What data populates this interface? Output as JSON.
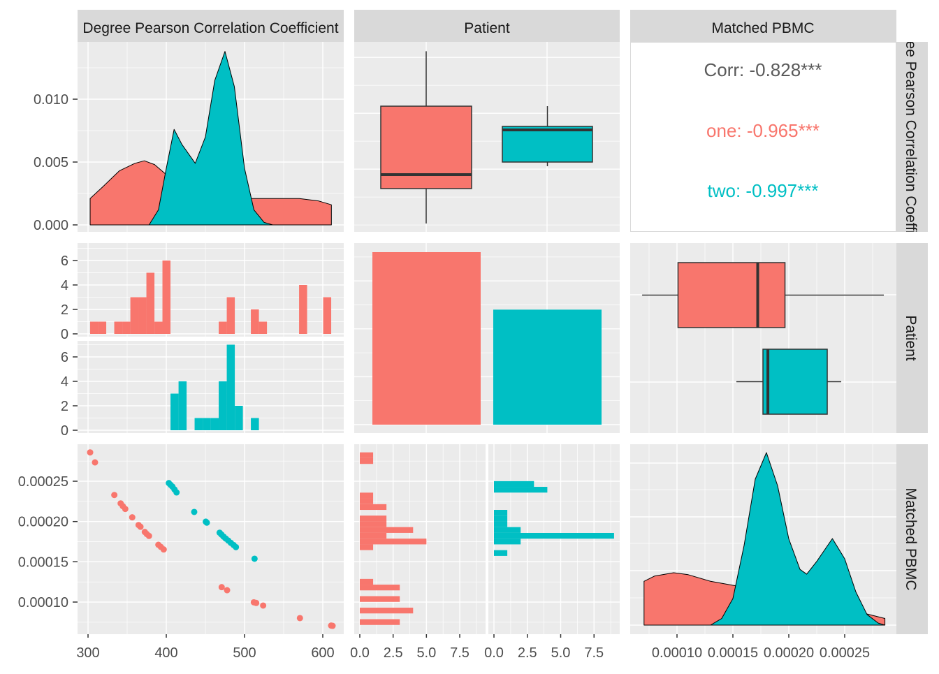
{
  "strips": {
    "columns": [
      "Degree Pearson Correlation Coefficient",
      "Patient",
      "Matched PBMC"
    ],
    "rows": [
      "Degree Pearson Correlation Coefficient",
      "Patient",
      "Matched PBMC"
    ]
  },
  "colors": {
    "one": "#F8766D",
    "two": "#00BFC4",
    "panel": "#EBEBEB",
    "strip": "#D9D9D9",
    "corr_text": "#595959"
  },
  "correlation": {
    "overall": "Corr: -0.828***",
    "one": "one: -0.965***",
    "two": "two: -0.997***"
  },
  "axes": {
    "x_bottom": [
      [
        "300",
        "400",
        "500",
        "600"
      ],
      [
        "0.0",
        "2.5",
        "5.0",
        "7.5"
      ],
      [
        "0.0",
        "2.5",
        "5.0",
        "7.5"
      ],
      [
        "0.00010",
        "0.00015",
        "0.00020",
        "0.00025"
      ]
    ],
    "y_left": [
      [
        "0.000",
        "0.005",
        "0.010"
      ],
      [
        "0",
        "2",
        "4",
        "6"
      ],
      [
        "0",
        "2",
        "4",
        "6"
      ],
      [
        "0.00010",
        "0.00015",
        "0.00020",
        "0.00025"
      ]
    ]
  },
  "chart_data": [
    {
      "panel": "density-pearson",
      "type": "area",
      "x_variable": "Degree Pearson Correlation Coefficient",
      "xlim": [
        286.6,
        626.8
      ],
      "ylim": [
        0,
        0.0144
      ],
      "series": [
        {
          "group": "one",
          "points": [
            [
              302.7,
              0.0021
            ],
            [
              320,
              0.0031
            ],
            [
              340,
              0.0043
            ],
            [
              360,
              0.0049
            ],
            [
              372,
              0.0051
            ],
            [
              385,
              0.0048
            ],
            [
              400,
              0.004
            ],
            [
              420,
              0.003
            ],
            [
              450,
              0.0022
            ],
            [
              480,
              0.002
            ],
            [
              510,
              0.0021
            ],
            [
              540,
              0.0021
            ],
            [
              570,
              0.0021
            ],
            [
              595,
              0.0019
            ],
            [
              611,
              0.0016
            ]
          ]
        },
        {
          "group": "two",
          "points": [
            [
              378,
              0
            ],
            [
              390,
              0.0012
            ],
            [
              400,
              0.0045
            ],
            [
              410,
              0.0076
            ],
            [
              420,
              0.0064
            ],
            [
              437,
              0.0049
            ],
            [
              450,
              0.007
            ],
            [
              462,
              0.0115
            ],
            [
              475,
              0.0138
            ],
            [
              487,
              0.011
            ],
            [
              500,
              0.0045
            ],
            [
              512,
              0.0012
            ],
            [
              525,
              0.0002
            ],
            [
              536,
              0
            ]
          ]
        }
      ]
    },
    {
      "panel": "boxplot-pearson-by-patient",
      "type": "box",
      "boxes": [
        {
          "group": "one",
          "min": 302.7,
          "q1": 365.2,
          "median": 390.2,
          "q3": 512.7,
          "max": 611
        },
        {
          "group": "two",
          "min": 405.2,
          "q1": 412.7,
          "median": 470.2,
          "q3": 476.5,
          "max": 512.7
        }
      ]
    },
    {
      "panel": "histogram-pearson-faceted",
      "type": "bar",
      "binwidth": 10.27,
      "series": [
        {
          "group": "one",
          "bins": [
            [
              302.7,
              1
            ],
            [
              313.0,
              1
            ],
            [
              333.5,
              1
            ],
            [
              343.8,
              1
            ],
            [
              354.1,
              3
            ],
            [
              364.3,
              3
            ],
            [
              374.6,
              5
            ],
            [
              384.9,
              1
            ],
            [
              395.1,
              6
            ],
            [
              467.0,
              1
            ],
            [
              477.3,
              3
            ],
            [
              508.1,
              2
            ],
            [
              518.4,
              1
            ],
            [
              569.7,
              4
            ],
            [
              600.5,
              3
            ]
          ]
        },
        {
          "group": "two",
          "bins": [
            [
              405.4,
              3
            ],
            [
              415.7,
              4
            ],
            [
              436.2,
              1
            ],
            [
              446.5,
              1
            ],
            [
              456.8,
              1
            ],
            [
              467.0,
              4
            ],
            [
              477.3,
              7
            ],
            [
              487.6,
              2
            ],
            [
              508.1,
              1
            ]
          ]
        }
      ],
      "ylim": [
        0,
        7.3
      ]
    },
    {
      "panel": "bar-patient-count",
      "type": "bar",
      "categories": [
        "one",
        "two"
      ],
      "values": [
        36,
        24
      ]
    },
    {
      "panel": "boxplot-pbmc-by-patient",
      "type": "box",
      "boxes": [
        {
          "group": "one",
          "min": 6.88e-05,
          "q1": 0.0001009,
          "median": 0.0001722,
          "q3": 0.0001966,
          "max": 0.000285
        },
        {
          "group": "two",
          "min": 0.0001531,
          "q1": 0.0001769,
          "median": 0.0001813,
          "q3": 0.0002344,
          "max": 0.0002469
        }
      ]
    },
    {
      "panel": "scatter-pbmc-vs-pearson",
      "type": "scatter",
      "series": [
        {
          "group": "one",
          "points": [
            [
              302.7,
              0.0002858
            ],
            [
              308.9,
              0.0002734
            ],
            [
              333.6,
              0.0002329
            ],
            [
              341.7,
              0.0002225
            ],
            [
              344.5,
              0.000219
            ],
            [
              347.6,
              0.0002156
            ],
            [
              356.5,
              0.0002052
            ],
            [
              364.6,
              0.0001956
            ],
            [
              367,
              0.0001935
            ],
            [
              372.6,
              0.000187
            ],
            [
              375,
              0.0001845
            ],
            [
              377.9,
              0.0001821
            ],
            [
              389.9,
              0.0001711
            ],
            [
              393,
              0.0001685
            ],
            [
              396.7,
              0.0001653
            ],
            [
              470.8,
              0.0001185
            ],
            [
              477.7,
              0.0001147
            ],
            [
              511.9,
              9.97e-05
            ],
            [
              514.9,
              9.89e-05
            ],
            [
              523.8,
              9.57e-05
            ],
            [
              570.8,
              8.01e-05
            ],
            [
              610.7,
              7.08e-05
            ],
            [
              612.5,
              7.05e-05
            ]
          ]
        },
        {
          "group": "two",
          "points": [
            [
              403.3,
              0.0002477
            ],
            [
              405.5,
              0.0002455
            ],
            [
              407.8,
              0.0002433
            ],
            [
              410.5,
              0.0002398
            ],
            [
              413.1,
              0.0002361
            ],
            [
              435.7,
              0.0002119
            ],
            [
              450.5,
              0.0001998
            ],
            [
              451.8,
              0.0001986
            ],
            [
              468.2,
              0.0001861
            ],
            [
              470.5,
              0.0001838
            ],
            [
              473.2,
              0.0001812
            ],
            [
              476,
              0.0001788
            ],
            [
              479.2,
              0.0001763
            ],
            [
              482.5,
              0.0001735
            ],
            [
              486,
              0.0001708
            ],
            [
              489,
              0.0001682
            ],
            [
              512.8,
              0.0001538
            ]
          ]
        }
      ]
    },
    {
      "panel": "histogram-pbmc-faceted",
      "type": "bar",
      "orientation": "horizontal",
      "binwidth": 7.14e-06,
      "series": [
        {
          "group": "one",
          "bins": [
            [
              0.0002787,
              1
            ],
            [
              0.0002715,
              1
            ],
            [
              0.0002287,
              1
            ],
            [
              0.0002216,
              1
            ],
            [
              0.0002144,
              2
            ],
            [
              0.0002002,
              2
            ],
            [
              0.000193,
              2
            ],
            [
              0.0001859,
              4
            ],
            [
              0.0001787,
              2
            ],
            [
              0.0001716,
              5
            ],
            [
              0.0001645,
              1
            ],
            [
              0.0001216,
              1
            ],
            [
              0.0001145,
              3
            ],
            [
              0.0001002,
              3
            ],
            [
              8.59e-05,
              4
            ],
            [
              7.16e-05,
              3
            ]
          ]
        },
        {
          "group": "two",
          "bins": [
            [
              0.000243,
              3
            ],
            [
              0.0002359,
              4
            ],
            [
              0.0002073,
              1
            ],
            [
              0.0002002,
              1
            ],
            [
              0.000193,
              1
            ],
            [
              0.0001859,
              2
            ],
            [
              0.0001787,
              9
            ],
            [
              0.0001716,
              2
            ],
            [
              0.0001573,
              1
            ]
          ]
        }
      ],
      "xlim": [
        0,
        9.2
      ]
    },
    {
      "panel": "density-pbmc",
      "type": "area",
      "x_variable": "Matched PBMC",
      "series": [
        {
          "group": "one",
          "points": [
            [
              7.05e-05,
              3300
            ],
            [
              8e-05,
              3700
            ],
            [
              9.7e-05,
              3950
            ],
            [
              0.00011,
              3800
            ],
            [
              0.00013,
              3300
            ],
            [
              0.00015,
              3000
            ],
            [
              0.00017,
              2700
            ],
            [
              0.00019,
              2100
            ],
            [
              0.00021,
              1500
            ],
            [
              0.00023,
              1200
            ],
            [
              0.00025,
              1100
            ],
            [
              0.000267,
              900
            ],
            [
              0.000286,
              500
            ]
          ]
        },
        {
          "group": "two",
          "points": [
            [
              0.00013,
              0
            ],
            [
              0.00014,
              500
            ],
            [
              0.00015,
              2000
            ],
            [
              0.00016,
              6000
            ],
            [
              0.00017,
              11000
            ],
            [
              0.00018,
              13000
            ],
            [
              0.00019,
              10500
            ],
            [
              0.0002,
              6500
            ],
            [
              0.00021,
              4200
            ],
            [
              0.000216,
              3840
            ],
            [
              0.000225,
              4800
            ],
            [
              0.000239,
              6520
            ],
            [
              0.00025,
              5000
            ],
            [
              0.00026,
              2500
            ],
            [
              0.00027,
              800
            ],
            [
              0.00028,
              150
            ],
            [
              0.000286,
              0
            ]
          ]
        }
      ]
    }
  ]
}
